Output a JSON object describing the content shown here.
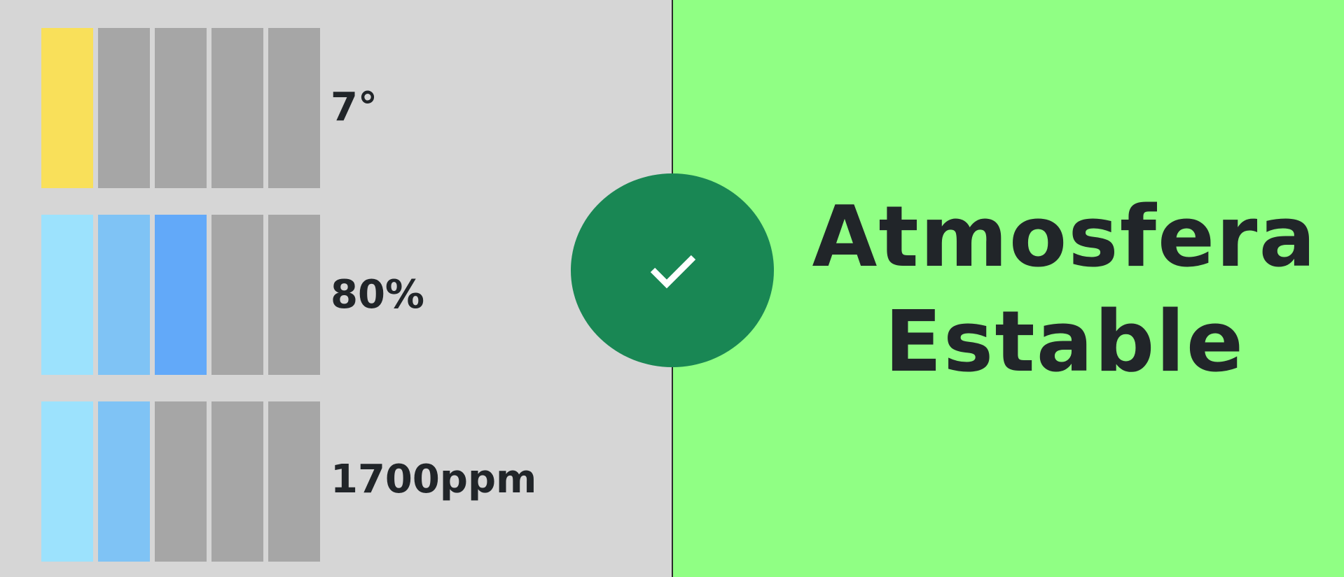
{
  "metrics": [
    {
      "name": "temperature",
      "value": "7°",
      "level": 1,
      "segments": 5,
      "active_colors": [
        "#f9e05a"
      ]
    },
    {
      "name": "humidity",
      "value": "80%",
      "level": 3,
      "segments": 5,
      "active_colors": [
        "#9ce2fd",
        "#7fc3f5",
        "#62a9f9"
      ]
    },
    {
      "name": "co2",
      "value": "1700ppm",
      "level": 2,
      "segments": 5,
      "active_colors": [
        "#9ce2fd",
        "#7fc3f5"
      ]
    }
  ],
  "status": {
    "line1": "Atmosfera",
    "line2": "Estable",
    "icon": "check-icon",
    "color": "#198754",
    "panel_color": "#90ff84"
  },
  "colors": {
    "inactive_segment": "#a6a6a6",
    "left_background": "#d6d6d6",
    "text": "#212529"
  }
}
